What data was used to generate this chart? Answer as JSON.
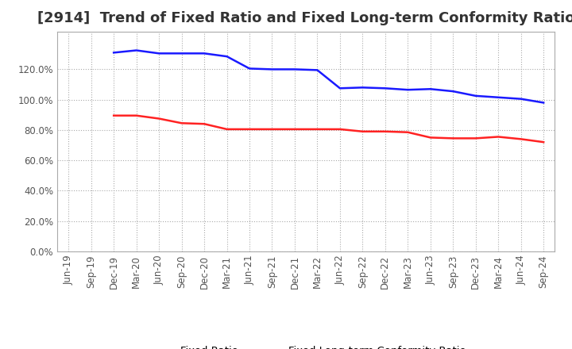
{
  "title": "[2914]  Trend of Fixed Ratio and Fixed Long-term Conformity Ratio",
  "title_fontsize": 13,
  "xlabel": "",
  "ylabel": "",
  "ylim": [
    0,
    145
  ],
  "yticks": [
    0,
    20,
    40,
    60,
    80,
    100,
    120
  ],
  "background_color": "#ffffff",
  "grid_color": "#aaaaaa",
  "x_labels": [
    "Jun-19",
    "Sep-19",
    "Dec-19",
    "Mar-20",
    "Jun-20",
    "Sep-20",
    "Dec-20",
    "Mar-21",
    "Jun-21",
    "Sep-21",
    "Dec-21",
    "Mar-22",
    "Jun-22",
    "Sep-22",
    "Dec-22",
    "Mar-23",
    "Jun-23",
    "Sep-23",
    "Dec-23",
    "Mar-24",
    "Jun-24",
    "Sep-24"
  ],
  "fixed_ratio": [
    null,
    null,
    131.0,
    132.5,
    130.5,
    130.5,
    130.5,
    128.5,
    120.5,
    120.0,
    120.0,
    119.5,
    107.5,
    108.0,
    107.5,
    106.5,
    107.0,
    105.5,
    102.5,
    101.5,
    100.5,
    98.0
  ],
  "fixed_lterm": [
    null,
    null,
    89.5,
    89.5,
    87.5,
    84.5,
    84.0,
    80.5,
    80.5,
    80.5,
    80.5,
    80.5,
    80.5,
    79.0,
    79.0,
    78.5,
    75.0,
    74.5,
    74.5,
    75.5,
    74.0,
    72.0
  ],
  "fixed_ratio_color": "#1a1aff",
  "fixed_lterm_color": "#ff2222",
  "line_width": 1.8,
  "legend_fixed_ratio": "Fixed Ratio",
  "legend_fixed_lterm": "Fixed Long-term Conformity Ratio"
}
